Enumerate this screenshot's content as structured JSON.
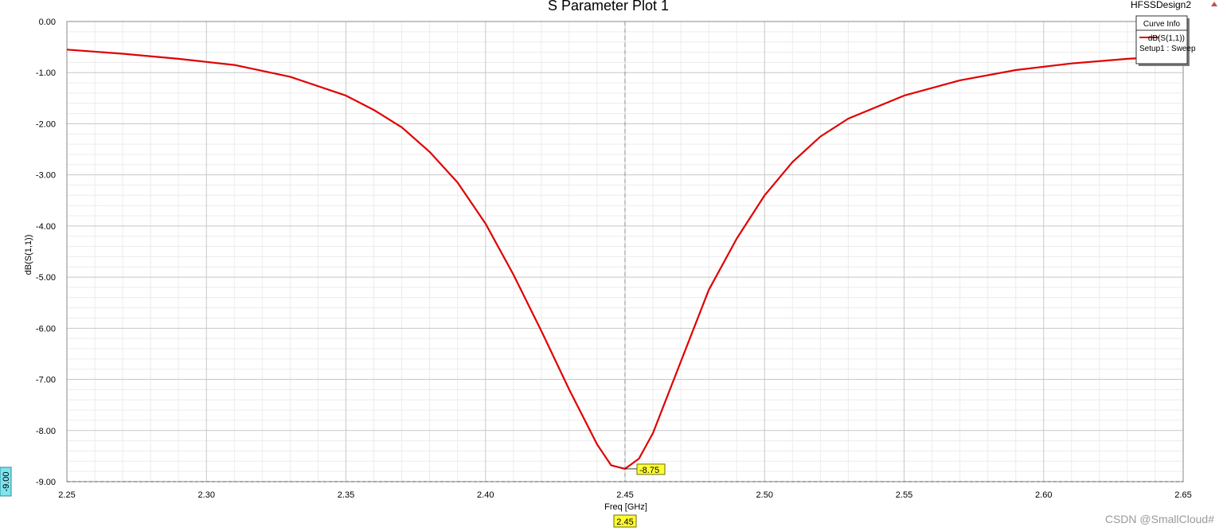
{
  "design_name": "HFSSDesign2",
  "watermark": "CSDN @SmallCloud#",
  "chart_data": {
    "type": "line",
    "title": "S Parameter Plot 1",
    "xlabel": "Freq [GHz]",
    "ylabel": "dB(S(1,1))",
    "xlim": [
      2.25,
      2.65
    ],
    "ylim": [
      -9.0,
      0.0
    ],
    "xticks": [
      "2.25",
      "2.30",
      "2.35",
      "2.40",
      "2.45",
      "2.50",
      "2.55",
      "2.60",
      "2.65"
    ],
    "yticks": [
      "0.00",
      "-1.00",
      "-2.00",
      "-3.00",
      "-4.00",
      "-5.00",
      "-6.00",
      "-7.00",
      "-8.00",
      "-9.00"
    ],
    "grid": true,
    "legend": {
      "title": "Curve Info",
      "placement": "top-right",
      "entries": [
        {
          "name": "dB(S(1,1))",
          "sub": "Setup1 : Sweep",
          "color": "#e00000"
        }
      ]
    },
    "series": [
      {
        "name": "dB(S(1,1))",
        "color": "#e00000",
        "x": [
          2.25,
          2.27,
          2.29,
          2.31,
          2.33,
          2.35,
          2.36,
          2.37,
          2.38,
          2.39,
          2.4,
          2.41,
          2.42,
          2.43,
          2.44,
          2.445,
          2.45,
          2.455,
          2.46,
          2.47,
          2.48,
          2.49,
          2.5,
          2.51,
          2.52,
          2.53,
          2.55,
          2.57,
          2.59,
          2.61,
          2.63,
          2.64
        ],
        "y": [
          -0.55,
          -0.63,
          -0.73,
          -0.85,
          -1.08,
          -1.45,
          -1.73,
          -2.07,
          -2.55,
          -3.15,
          -3.95,
          -4.95,
          -6.05,
          -7.2,
          -8.27,
          -8.68,
          -8.75,
          -8.55,
          -8.05,
          -6.65,
          -5.25,
          -4.25,
          -3.4,
          -2.75,
          -2.25,
          -1.9,
          -1.45,
          -1.15,
          -0.95,
          -0.82,
          -0.73,
          -0.7
        ]
      }
    ],
    "markers": [
      {
        "x": 2.45,
        "y": -8.75,
        "x_label": "2.45",
        "y_label": "-8.75"
      }
    ],
    "reference_line": {
      "y": -9.0,
      "y_label": "-9.00"
    }
  }
}
